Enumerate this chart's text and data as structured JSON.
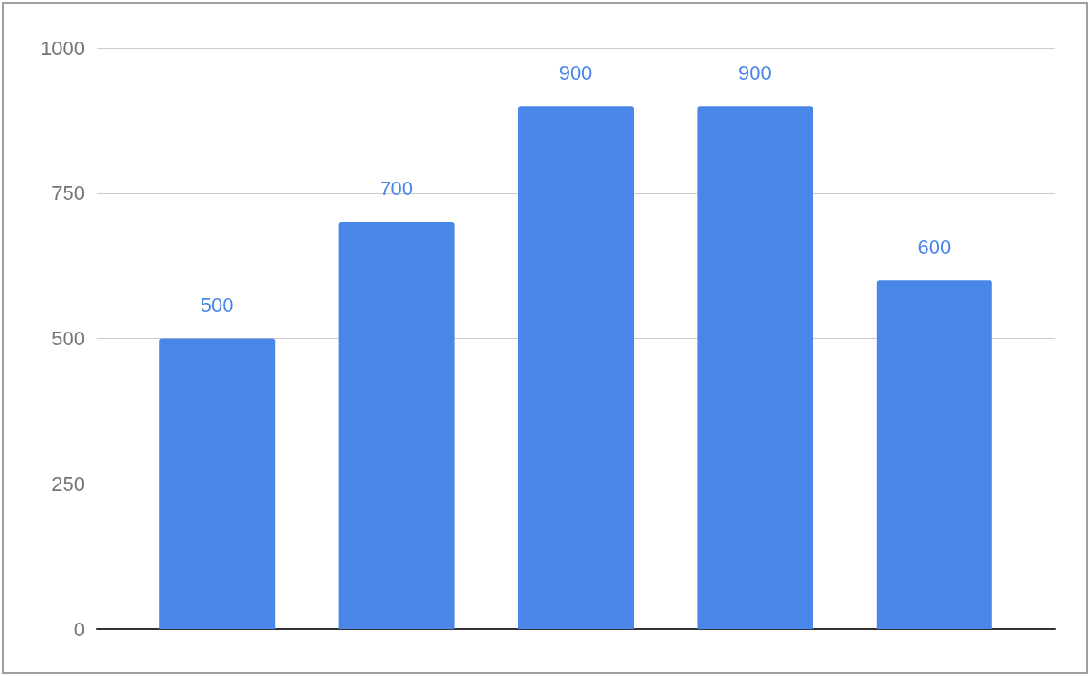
{
  "chart_data": {
    "type": "bar",
    "categories": [
      null,
      null,
      null,
      null,
      null
    ],
    "values": [
      500,
      700,
      900,
      900,
      600
    ],
    "color": "#4a86e8",
    "ylim": [
      0,
      1000
    ],
    "yticks": [
      0,
      250,
      500,
      750,
      1000
    ],
    "grid": "y",
    "data_labels": true,
    "tick_labels": "y"
  }
}
